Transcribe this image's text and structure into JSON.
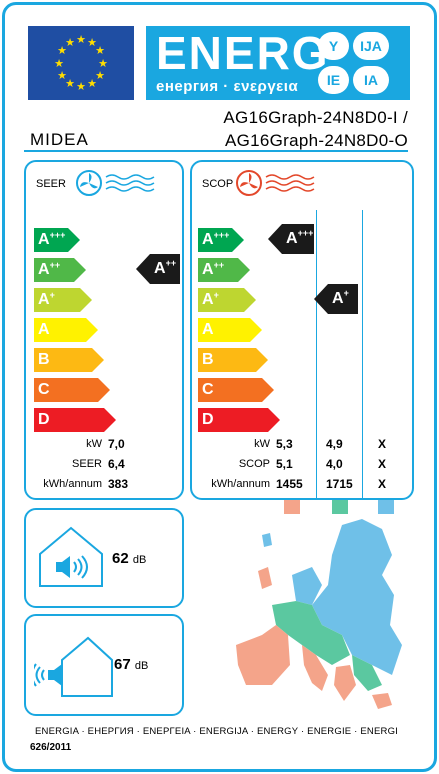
{
  "header": {
    "energy_word": "ENERG",
    "energy_subtitle": "енергия · ενεργεια",
    "lang_badges": [
      "Y",
      "IJA",
      "IE",
      "IA"
    ],
    "supplier": "MIDEA",
    "model_indoor": "AG16Graph-24N8D0-I /",
    "model_outdoor": "AG16Graph-24N8D0-O"
  },
  "cooling": {
    "title": "SEER",
    "classes": [
      {
        "label": "A",
        "sup": "+++",
        "color": "#00a651"
      },
      {
        "label": "A",
        "sup": "++",
        "color": "#50b848"
      },
      {
        "label": "A",
        "sup": "+",
        "color": "#bed630"
      },
      {
        "label": "A",
        "sup": "",
        "color": "#fff200"
      },
      {
        "label": "B",
        "sup": "",
        "color": "#fdb913"
      },
      {
        "label": "C",
        "sup": "",
        "color": "#f37021"
      },
      {
        "label": "D",
        "sup": "",
        "color": "#ed1c24"
      }
    ],
    "rating": {
      "label": "A",
      "sup": "++"
    },
    "rows": [
      {
        "label": "kW",
        "value": "7,0"
      },
      {
        "label": "SEER",
        "value": "6,4"
      },
      {
        "label": "kWh/annum",
        "value": "383"
      }
    ]
  },
  "heating": {
    "title": "SCOP",
    "classes": [
      {
        "label": "A",
        "sup": "+++",
        "color": "#00a651"
      },
      {
        "label": "A",
        "sup": "++",
        "color": "#50b848"
      },
      {
        "label": "A",
        "sup": "+",
        "color": "#bed630"
      },
      {
        "label": "A",
        "sup": "",
        "color": "#fff200"
      },
      {
        "label": "B",
        "sup": "",
        "color": "#fdb913"
      },
      {
        "label": "C",
        "sup": "",
        "color": "#f37021"
      },
      {
        "label": "D",
        "sup": "",
        "color": "#ed1c24"
      }
    ],
    "ratings": [
      {
        "label": "A",
        "sup": "+++",
        "zone": "warmer"
      },
      {
        "label": "A",
        "sup": "+",
        "zone": "average"
      }
    ],
    "rows": [
      {
        "label": "kW",
        "values": [
          "5,3",
          "4,9",
          "X"
        ]
      },
      {
        "label": "SCOP",
        "values": [
          "5,1",
          "4,0",
          "X"
        ]
      },
      {
        "label": "kWh/annum",
        "values": [
          "1455",
          "1715",
          "X"
        ]
      }
    ],
    "zone_colors": [
      "#f4a48a",
      "#5bc8a0",
      "#6fc0e8"
    ]
  },
  "noise": {
    "indoor_value": "62",
    "indoor_unit": "dB",
    "outdoor_value": "67",
    "outdoor_unit": "dB"
  },
  "footer": {
    "languages": "ENERGIA · ЕНЕРГИЯ · ΕΝΕΡΓΕΙΑ · ENERGIJA · ENERGY · ENERGIE · ENERGI",
    "regulation": "626/2011"
  }
}
